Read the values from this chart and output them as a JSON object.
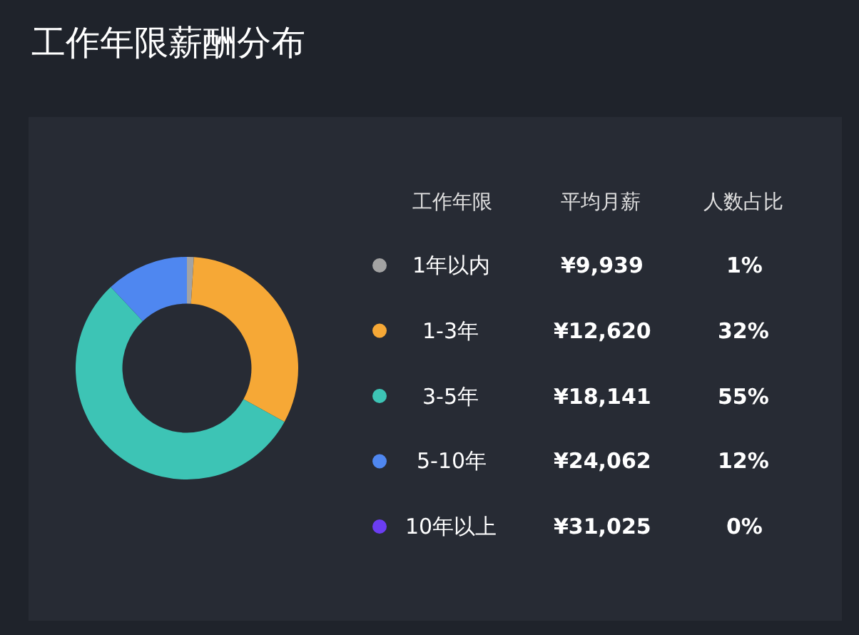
{
  "chart_data": {
    "type": "donut",
    "title": "工作年限薪酬分布",
    "categories": [
      "1年以内",
      "1-3年",
      "3-5年",
      "5-10年",
      "10年以上"
    ],
    "values": [
      1,
      32,
      55,
      12,
      0
    ],
    "value_labels": [
      "1%",
      "32%",
      "55%",
      "12%",
      "0%"
    ],
    "colors": [
      "#a3a3a3",
      "#f6a836",
      "#3dc4b5",
      "#4f87f0",
      "#6b3df2"
    ],
    "annotations": [
      "工作年限",
      "平均月薪",
      "人数占比",
      "¥9,939",
      "¥12,620",
      "¥18,141",
      "¥24,062",
      "¥31,025"
    ],
    "legend": "right"
  }
}
